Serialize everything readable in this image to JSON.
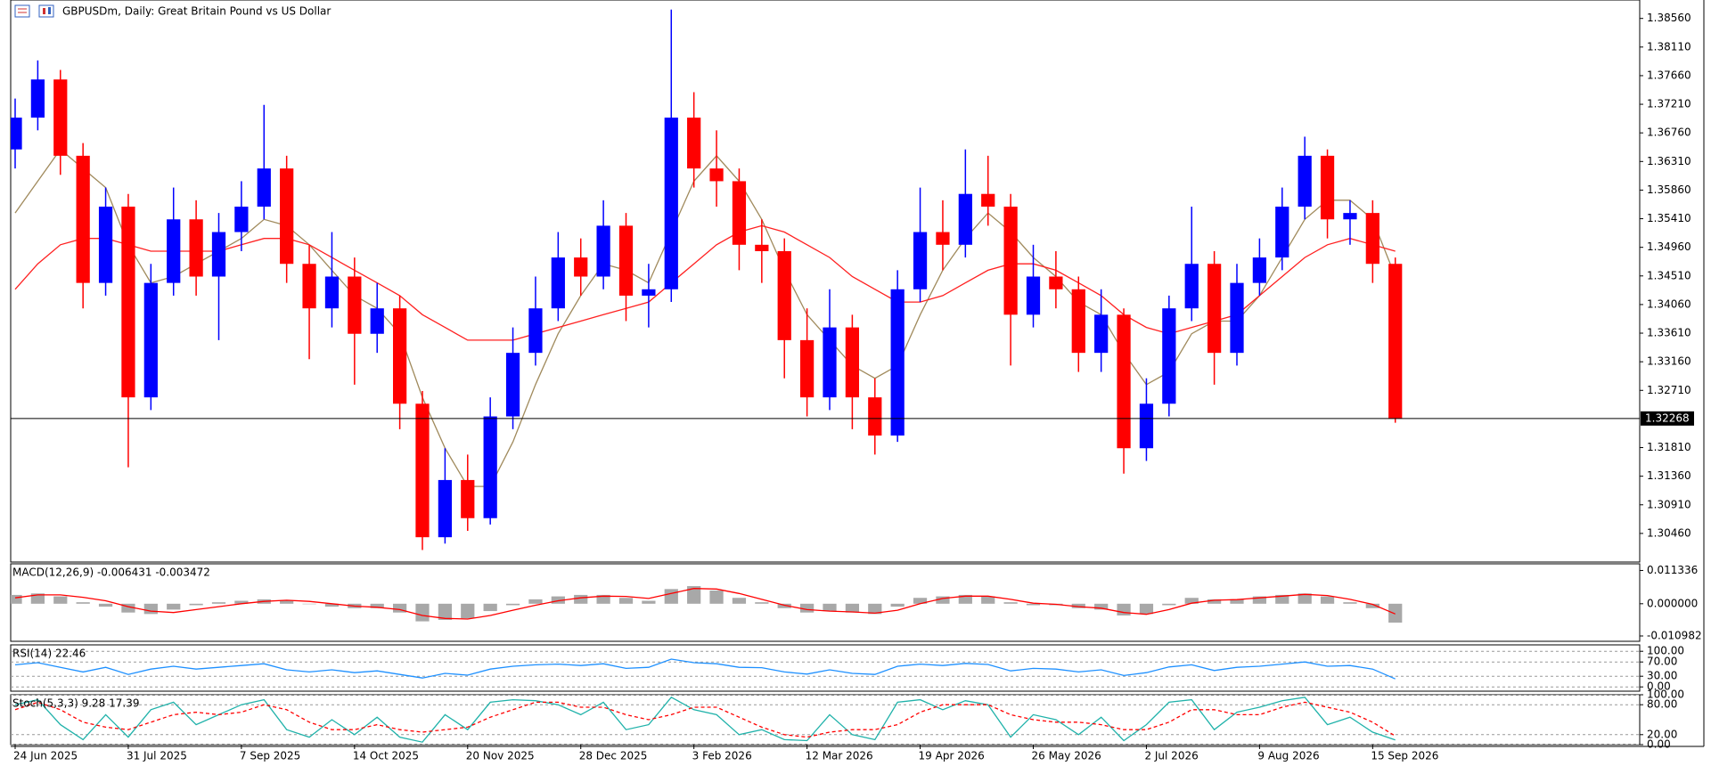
{
  "chart_data": [
    {
      "type": "candlestick",
      "title": "GBPUSDm, Daily:  Great Britain Pound vs US Dollar",
      "categories": [
        "24 Jun 2025",
        null,
        null,
        null,
        null,
        "31 Jul 2025",
        null,
        null,
        null,
        null,
        "7 Sep 2025",
        null,
        null,
        null,
        null,
        "14 Oct 2025",
        null,
        null,
        null,
        null,
        "20 Nov 2025",
        null,
        null,
        null,
        null,
        "28 Dec 2025",
        null,
        null,
        null,
        null,
        "3 Feb 2026",
        null,
        null,
        null,
        null,
        "12 Mar 2026",
        null,
        null,
        null,
        null,
        "19 Apr 2026",
        null,
        null,
        null,
        null,
        "26 May 2026",
        null,
        null,
        null,
        null,
        "2 Jul 2026",
        null,
        null,
        null,
        null,
        "9 Aug 2026",
        null,
        null,
        null,
        null,
        "15 Sep 2026",
        null
      ],
      "open": [
        1.365,
        1.37,
        1.376,
        1.364,
        1.344,
        1.356,
        1.326,
        1.344,
        1.354,
        1.345,
        1.352,
        1.356,
        1.362,
        1.347,
        1.34,
        1.345,
        1.336,
        1.34,
        1.325,
        1.304,
        1.313,
        1.307,
        1.323,
        1.333,
        1.34,
        1.348,
        1.345,
        1.353,
        1.342,
        1.343,
        1.37,
        1.362,
        1.36,
        1.35,
        1.349,
        1.335,
        1.326,
        1.337,
        1.326,
        1.32,
        1.343,
        1.352,
        1.35,
        1.358,
        1.356,
        1.339,
        1.345,
        1.343,
        1.333,
        1.339,
        1.318,
        1.325,
        1.34,
        1.347,
        1.333,
        1.344,
        1.348,
        1.356,
        1.364,
        1.354,
        1.355,
        1.347
      ],
      "high": [
        1.373,
        1.379,
        1.3775,
        1.366,
        1.359,
        1.358,
        1.347,
        1.359,
        1.357,
        1.355,
        1.36,
        1.372,
        1.364,
        1.35,
        1.352,
        1.348,
        1.344,
        1.342,
        1.327,
        1.318,
        1.317,
        1.326,
        1.337,
        1.345,
        1.352,
        1.351,
        1.357,
        1.355,
        1.347,
        1.387,
        1.374,
        1.368,
        1.362,
        1.354,
        1.351,
        1.34,
        1.343,
        1.339,
        1.329,
        1.346,
        1.359,
        1.357,
        1.365,
        1.364,
        1.358,
        1.35,
        1.349,
        1.345,
        1.343,
        1.34,
        1.329,
        1.342,
        1.356,
        1.349,
        1.347,
        1.351,
        1.359,
        1.367,
        1.365,
        1.357,
        1.357,
        1.348
      ],
      "low": [
        1.362,
        1.368,
        1.361,
        1.34,
        1.342,
        1.315,
        1.324,
        1.342,
        1.342,
        1.335,
        1.349,
        1.354,
        1.344,
        1.332,
        1.337,
        1.328,
        1.333,
        1.321,
        1.302,
        1.303,
        1.305,
        1.306,
        1.321,
        1.331,
        1.338,
        1.342,
        1.343,
        1.338,
        1.337,
        1.341,
        1.359,
        1.356,
        1.346,
        1.344,
        1.329,
        1.323,
        1.324,
        1.321,
        1.317,
        1.319,
        1.341,
        1.346,
        1.348,
        1.353,
        1.331,
        1.337,
        1.34,
        1.33,
        1.33,
        1.314,
        1.316,
        1.323,
        1.338,
        1.328,
        1.331,
        1.342,
        1.346,
        1.354,
        1.351,
        1.35,
        1.344,
        1.322
      ],
      "close": [
        1.37,
        1.376,
        1.364,
        1.344,
        1.356,
        1.326,
        1.344,
        1.354,
        1.345,
        1.352,
        1.356,
        1.362,
        1.347,
        1.34,
        1.345,
        1.336,
        1.34,
        1.325,
        1.304,
        1.313,
        1.307,
        1.323,
        1.333,
        1.34,
        1.348,
        1.345,
        1.353,
        1.342,
        1.343,
        1.37,
        1.362,
        1.36,
        1.35,
        1.349,
        1.335,
        1.326,
        1.337,
        1.326,
        1.32,
        1.343,
        1.352,
        1.35,
        1.358,
        1.356,
        1.339,
        1.345,
        1.343,
        1.333,
        1.339,
        1.318,
        1.325,
        1.34,
        1.347,
        1.333,
        1.344,
        1.348,
        1.356,
        1.364,
        1.354,
        1.355,
        1.347,
        1.3227
      ],
      "up_color": "#0000ff",
      "down_color": "#ff0000",
      "overlays": [
        {
          "color": "#a08a5c",
          "values": [
            1.355,
            1.36,
            1.365,
            1.362,
            1.359,
            1.35,
            1.344,
            1.345,
            1.347,
            1.349,
            1.351,
            1.354,
            1.353,
            1.35,
            1.346,
            1.342,
            1.34,
            1.336,
            1.326,
            1.318,
            1.312,
            1.312,
            1.319,
            1.328,
            1.336,
            1.342,
            1.347,
            1.346,
            1.344,
            1.352,
            1.36,
            1.364,
            1.36,
            1.354,
            1.346,
            1.339,
            1.335,
            1.331,
            1.329,
            1.331,
            1.339,
            1.346,
            1.351,
            1.355,
            1.352,
            1.348,
            1.345,
            1.341,
            1.339,
            1.333,
            1.328,
            1.33,
            1.336,
            1.338,
            1.338,
            1.342,
            1.348,
            1.354,
            1.357,
            1.357,
            1.354,
            1.345
          ]
        },
        {
          "color": "#ff2020",
          "values": [
            1.343,
            1.347,
            1.35,
            1.351,
            1.351,
            1.35,
            1.349,
            1.349,
            1.349,
            1.349,
            1.35,
            1.351,
            1.351,
            1.35,
            1.348,
            1.346,
            1.344,
            1.342,
            1.339,
            1.337,
            1.335,
            1.335,
            1.335,
            1.336,
            1.337,
            1.338,
            1.339,
            1.34,
            1.341,
            1.344,
            1.347,
            1.35,
            1.352,
            1.353,
            1.352,
            1.35,
            1.348,
            1.345,
            1.343,
            1.341,
            1.341,
            1.342,
            1.344,
            1.346,
            1.347,
            1.347,
            1.346,
            1.344,
            1.342,
            1.339,
            1.337,
            1.336,
            1.337,
            1.338,
            1.339,
            1.342,
            1.345,
            1.348,
            1.35,
            1.351,
            1.35,
            1.349
          ]
        }
      ],
      "last_price": {
        "value": 1.32268,
        "label": "1.32268"
      },
      "ylim": [
        1.3001,
        1.3885
      ],
      "yticks": [
        {
          "value": 1.3856,
          "label": "1.38560"
        },
        {
          "value": 1.3811,
          "label": "1.38110"
        },
        {
          "value": 1.3766,
          "label": "1.37660"
        },
        {
          "value": 1.3721,
          "label": "1.37210"
        },
        {
          "value": 1.3676,
          "label": "1.36760"
        },
        {
          "value": 1.3631,
          "label": "1.36310"
        },
        {
          "value": 1.3586,
          "label": "1.35860"
        },
        {
          "value": 1.3541,
          "label": "1.35410"
        },
        {
          "value": 1.3496,
          "label": "1.34960"
        },
        {
          "value": 1.3451,
          "label": "1.34510"
        },
        {
          "value": 1.3406,
          "label": "1.34060"
        },
        {
          "value": 1.3361,
          "label": "1.33610"
        },
        {
          "value": 1.3316,
          "label": "1.33160"
        },
        {
          "value": 1.3271,
          "label": "1.32710"
        },
        {
          "value": 1.3181,
          "label": "1.31810"
        },
        {
          "value": 1.3136,
          "label": "1.31360"
        },
        {
          "value": 1.3091,
          "label": "1.30910"
        },
        {
          "value": 1.3046,
          "label": "1.30460"
        }
      ],
      "grid": false
    },
    {
      "type": "macd",
      "title": "MACD(12,26,9) -0.006431 -0.003472",
      "series": [
        {
          "kind": "histogram",
          "color": "#a8a8a8",
          "values": [
            0.003,
            0.0035,
            0.0025,
            0.0005,
            -0.001,
            -0.003,
            -0.0035,
            -0.002,
            -0.0005,
            0.0005,
            0.001,
            0.0015,
            0.001,
            0.0,
            -0.001,
            -0.0015,
            -0.0015,
            -0.003,
            -0.006,
            -0.0055,
            -0.005,
            -0.0025,
            -0.0005,
            0.0015,
            0.0025,
            0.003,
            0.003,
            0.002,
            0.001,
            0.005,
            0.006,
            0.0045,
            0.002,
            0.0005,
            -0.0015,
            -0.003,
            -0.0025,
            -0.003,
            -0.0035,
            -0.001,
            0.002,
            0.0025,
            0.003,
            0.0025,
            0.0005,
            -0.0005,
            -0.0005,
            -0.0015,
            -0.002,
            -0.004,
            -0.0035,
            -0.0005,
            0.002,
            0.0015,
            0.0015,
            0.0025,
            0.003,
            0.0035,
            0.0025,
            0.0005,
            -0.0015,
            -0.006431
          ]
        },
        {
          "kind": "line",
          "color": "#ff0000",
          "values": [
            0.002,
            0.003,
            0.003,
            0.0022,
            0.001,
            -0.001,
            -0.0025,
            -0.003,
            -0.002,
            -0.001,
            0.0,
            0.0008,
            0.0012,
            0.0008,
            0.0,
            -0.0008,
            -0.0012,
            -0.002,
            -0.004,
            -0.005,
            -0.0052,
            -0.004,
            -0.0022,
            -0.0005,
            0.001,
            0.002,
            0.0026,
            0.0025,
            0.0018,
            0.0035,
            0.0052,
            0.005,
            0.0035,
            0.0015,
            -0.0005,
            -0.002,
            -0.0025,
            -0.0028,
            -0.0032,
            -0.0022,
            0.0,
            0.0018,
            0.0026,
            0.0026,
            0.0015,
            0.0002,
            -0.0002,
            -0.001,
            -0.0015,
            -0.003,
            -0.0036,
            -0.002,
            0.0002,
            0.0012,
            0.0014,
            0.002,
            0.0026,
            0.0032,
            0.0028,
            0.0015,
            -0.0002,
            -0.003472
          ]
        }
      ],
      "ylim": [
        -0.0128,
        0.0136
      ],
      "yticks": [
        0.011336,
        {
          "value": 0,
          "label": "0.000000"
        },
        -0.010982
      ],
      "grid": false
    },
    {
      "type": "line",
      "title": "RSI(14) 22.46",
      "series": [
        {
          "kind": "line",
          "color": "#1e90ff",
          "values": [
            62,
            68,
            55,
            42,
            55,
            35,
            50,
            58,
            50,
            55,
            60,
            65,
            48,
            42,
            48,
            40,
            45,
            35,
            25,
            38,
            33,
            50,
            58,
            62,
            64,
            60,
            65,
            52,
            55,
            78,
            68,
            65,
            55,
            54,
            42,
            36,
            48,
            38,
            35,
            58,
            64,
            60,
            66,
            63,
            45,
            52,
            50,
            42,
            48,
            32,
            40,
            56,
            62,
            46,
            55,
            58,
            64,
            70,
            58,
            60,
            50,
            22.46
          ]
        }
      ],
      "ylim": [
        -12,
        118
      ],
      "yticks": [
        {
          "value": 100,
          "label": "100.00"
        },
        {
          "value": 70,
          "label": "70.00"
        },
        {
          "value": 30,
          "label": "30.00"
        },
        {
          "value": 0,
          "label": "0.00"
        }
      ],
      "grid": true
    },
    {
      "type": "line",
      "title": "Stoch(5,3,3) 9.28 17.39",
      "series": [
        {
          "kind": "line",
          "color": "#20b2aa",
          "values": [
            80,
            90,
            40,
            10,
            60,
            15,
            70,
            85,
            40,
            60,
            80,
            90,
            30,
            15,
            50,
            20,
            55,
            15,
            5,
            60,
            30,
            85,
            90,
            88,
            80,
            60,
            85,
            30,
            40,
            95,
            70,
            60,
            20,
            30,
            10,
            8,
            60,
            20,
            10,
            85,
            90,
            70,
            88,
            80,
            15,
            60,
            50,
            20,
            55,
            8,
            40,
            85,
            90,
            30,
            65,
            75,
            88,
            95,
            40,
            55,
            25,
            9.28
          ]
        },
        {
          "kind": "dashed",
          "color": "#ff0000",
          "values": [
            70,
            85,
            70,
            45,
            35,
            30,
            45,
            60,
            65,
            60,
            65,
            80,
            70,
            45,
            30,
            30,
            40,
            30,
            25,
            30,
            35,
            55,
            70,
            85,
            85,
            75,
            75,
            60,
            50,
            60,
            75,
            75,
            55,
            35,
            20,
            15,
            25,
            30,
            30,
            40,
            65,
            80,
            80,
            80,
            60,
            50,
            45,
            45,
            40,
            30,
            30,
            45,
            70,
            70,
            60,
            60,
            75,
            85,
            75,
            65,
            45,
            17.39
          ]
        }
      ],
      "ylim": [
        0,
        100
      ],
      "yticks": [
        {
          "value": 100,
          "label": "100.00"
        },
        {
          "value": 80,
          "label": "80.00"
        },
        {
          "value": 20,
          "label": "20.00"
        },
        {
          "value": 0,
          "label": "0.00"
        }
      ],
      "grid": true
    }
  ]
}
